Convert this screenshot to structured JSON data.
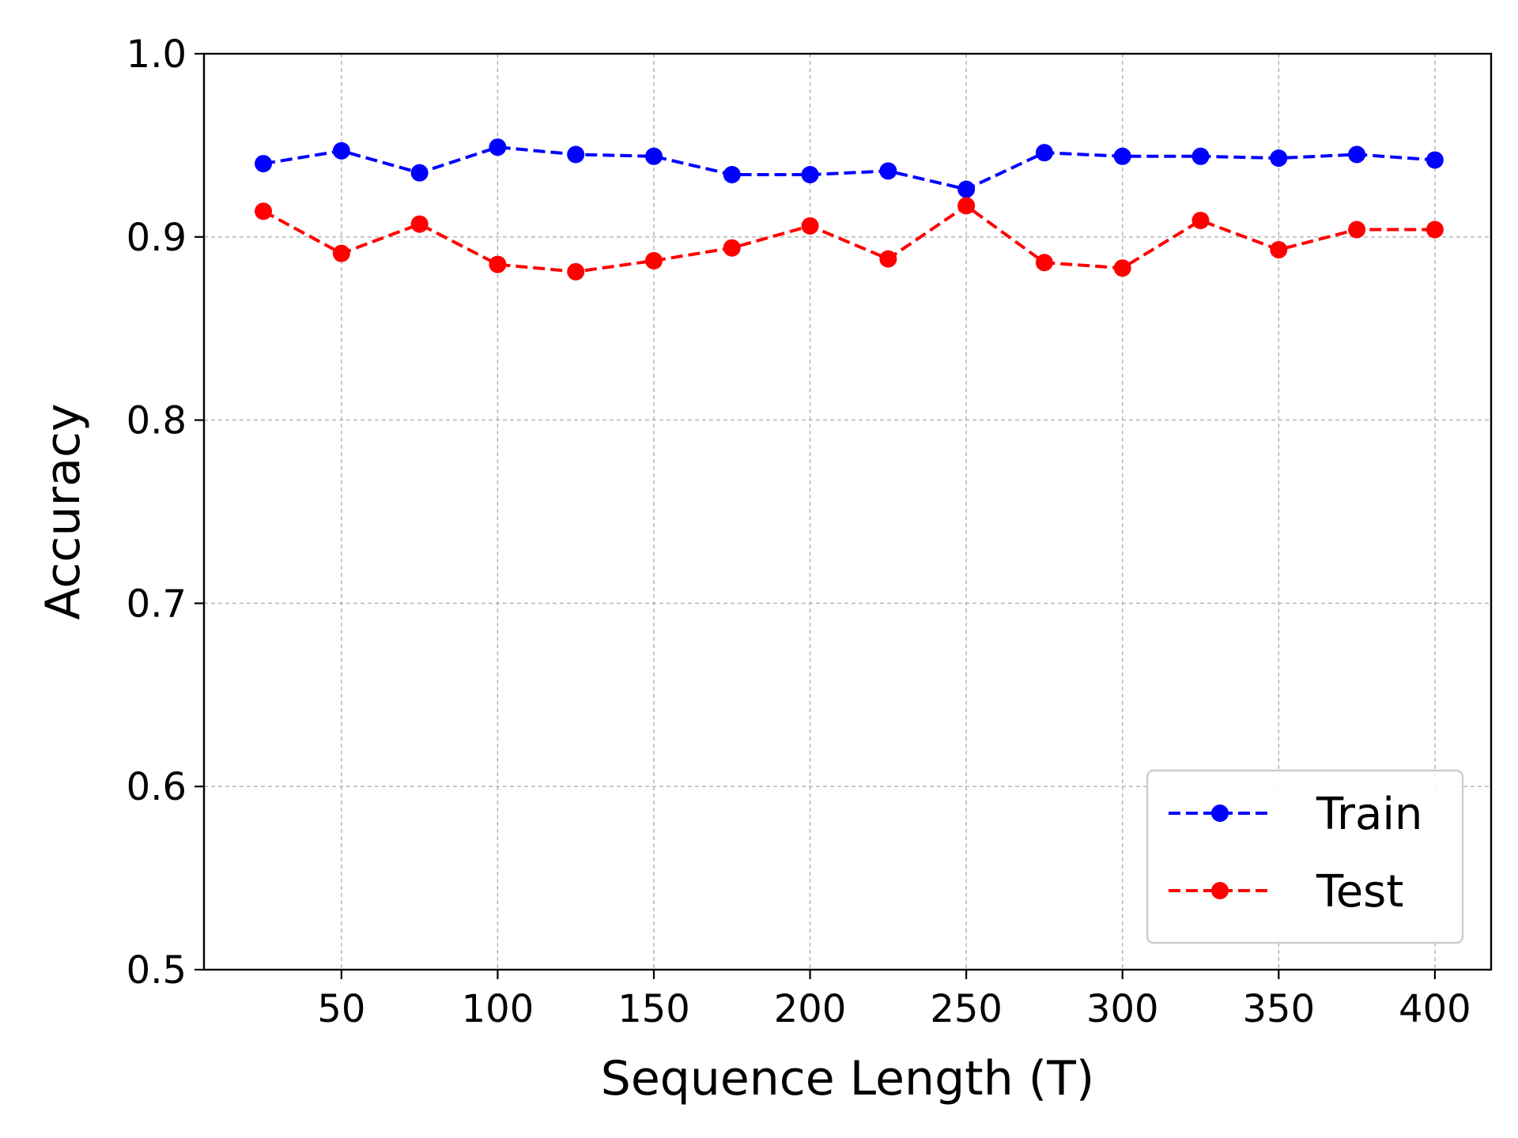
{
  "chart_data": {
    "type": "line",
    "title": "",
    "xlabel": "Sequence Length (T)",
    "ylabel": "Accuracy",
    "xlim": [
      6,
      418
    ],
    "ylim": [
      0.5,
      1.0
    ],
    "x_ticks": [
      50,
      100,
      150,
      200,
      250,
      300,
      350,
      400
    ],
    "y_ticks": [
      0.5,
      0.6,
      0.7,
      0.8,
      0.9,
      1.0
    ],
    "x_tick_labels": [
      "50",
      "100",
      "150",
      "200",
      "250",
      "300",
      "350",
      "400"
    ],
    "y_tick_labels": [
      "0.5",
      "0.6",
      "0.7",
      "0.8",
      "0.9",
      "1.0"
    ],
    "grid": true,
    "legend_position": "lower-right",
    "x": [
      25,
      50,
      75,
      100,
      125,
      150,
      175,
      200,
      225,
      250,
      275,
      300,
      325,
      350,
      375,
      400
    ],
    "series": [
      {
        "name": "Train",
        "color": "#0000ff",
        "line_style": "dashed",
        "marker": "circle",
        "values": [
          0.94,
          0.947,
          0.935,
          0.949,
          0.945,
          0.944,
          0.934,
          0.934,
          0.936,
          0.926,
          0.946,
          0.944,
          0.944,
          0.943,
          0.945,
          0.942
        ]
      },
      {
        "name": "Test",
        "color": "#ff0000",
        "line_style": "dashed",
        "marker": "circle",
        "values": [
          0.914,
          0.891,
          0.907,
          0.885,
          0.881,
          0.887,
          0.894,
          0.906,
          0.888,
          0.917,
          0.886,
          0.883,
          0.909,
          0.893,
          0.904,
          0.904
        ]
      }
    ]
  }
}
